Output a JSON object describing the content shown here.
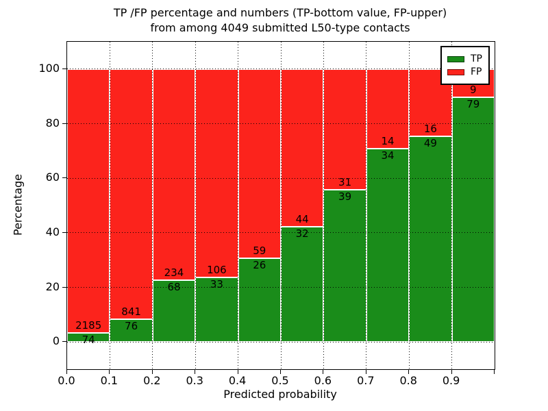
{
  "chart_data": {
    "type": "bar",
    "stacked": true,
    "normalized": "percent",
    "title_line1": "TP /FP percentage and numbers (TP-bottom value, FP-upper)",
    "title_line2": "from among 4049 submitted L50-type contacts",
    "xlabel": "Predicted probability",
    "ylabel": "Percentage",
    "total_contacts": 4049,
    "xlim": [
      0.0,
      1.0
    ],
    "ylim": [
      -10,
      110
    ],
    "yticks": [
      0,
      20,
      40,
      60,
      80,
      100
    ],
    "xticks": [
      {
        "value": 0.0,
        "label": "0.0"
      },
      {
        "value": 0.1,
        "label": "0.1"
      },
      {
        "value": 0.2,
        "label": "0.2"
      },
      {
        "value": 0.3,
        "label": "0.3"
      },
      {
        "value": 0.4,
        "label": "0.4"
      },
      {
        "value": 0.5,
        "label": "0.5"
      },
      {
        "value": 0.6,
        "label": "0.6"
      },
      {
        "value": 0.7,
        "label": "0.7"
      },
      {
        "value": 0.8,
        "label": "0.8"
      },
      {
        "value": 0.9,
        "label": "0.9"
      },
      {
        "value": 1.0,
        "label": ""
      }
    ],
    "grid_x": [
      0.1,
      0.2,
      0.3,
      0.4,
      0.5,
      0.6,
      0.7,
      0.8,
      0.9
    ],
    "colors": {
      "tp": "#1a8c1a",
      "fp": "#fc231c",
      "bar_edge": "#ffffff",
      "grid": "#000000"
    },
    "legend": {
      "position": "upper-right",
      "entries": [
        {
          "label": "TP",
          "color": "#1a8c1a"
        },
        {
          "label": "FP",
          "color": "#fc231c"
        }
      ]
    },
    "bars": [
      {
        "x_start": 0.0,
        "x_end": 0.1,
        "tp": 74,
        "fp": 2185
      },
      {
        "x_start": 0.1,
        "x_end": 0.2,
        "tp": 76,
        "fp": 841
      },
      {
        "x_start": 0.2,
        "x_end": 0.3,
        "tp": 68,
        "fp": 234
      },
      {
        "x_start": 0.3,
        "x_end": 0.4,
        "tp": 33,
        "fp": 106
      },
      {
        "x_start": 0.4,
        "x_end": 0.5,
        "tp": 26,
        "fp": 59
      },
      {
        "x_start": 0.5,
        "x_end": 0.6,
        "tp": 32,
        "fp": 44
      },
      {
        "x_start": 0.6,
        "x_end": 0.7,
        "tp": 39,
        "fp": 31
      },
      {
        "x_start": 0.7,
        "x_end": 0.8,
        "tp": 34,
        "fp": 14
      },
      {
        "x_start": 0.8,
        "x_end": 0.9,
        "tp": 49,
        "fp": 16
      },
      {
        "x_start": 0.9,
        "x_end": 1.0,
        "tp": 79,
        "fp": 9
      }
    ]
  }
}
